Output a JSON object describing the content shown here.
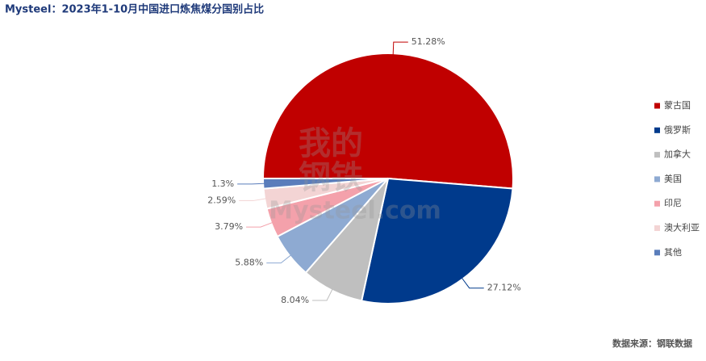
{
  "chart_data": {
    "type": "pie",
    "title": "Mysteel：2023年1-10月中国进口炼焦煤分国别占比",
    "source": "数据来源：钢联数据",
    "watermark": [
      "我的",
      "钢铁",
      "Mysteel.com"
    ],
    "categories": [
      "蒙古国",
      "俄罗斯",
      "加拿大",
      "美国",
      "印尼",
      "澳大利亚",
      "其他"
    ],
    "values": [
      51.28,
      27.12,
      8.04,
      5.88,
      3.79,
      2.59,
      1.3
    ],
    "value_labels": [
      "51.28%",
      "27.12%",
      "8.04%",
      "5.88%",
      "3.79%",
      "2.59%",
      "1.3%"
    ],
    "colors": [
      "#c00000",
      "#003a8c",
      "#bfbfbf",
      "#8eaad2",
      "#f4a1ab",
      "#f3d4d4",
      "#5a7dbb"
    ],
    "legend": "right"
  }
}
